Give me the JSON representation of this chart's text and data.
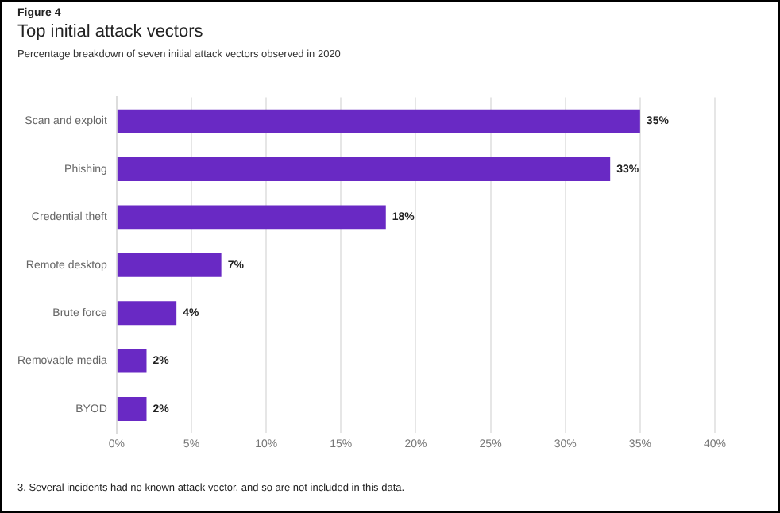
{
  "chart_data": {
    "type": "bar",
    "orientation": "horizontal",
    "title": "Top initial attack vectors",
    "subtitle": "Percentage breakdown of seven initial attack vectors observed in 2020",
    "annotations": [
      "Figure 4",
      "3. Several incidents had no known attack vector, and so are not included in this data."
    ],
    "categories": [
      "Scan and exploit",
      "Phishing",
      "Credential theft",
      "Remote desktop",
      "Brute force",
      "Removable media",
      "BYOD"
    ],
    "values": [
      35,
      33,
      18,
      7,
      4,
      2,
      2
    ],
    "value_labels": [
      "35%",
      "33%",
      "18%",
      "7%",
      "4%",
      "2%",
      "2%"
    ],
    "color": "#6929c4",
    "xlim": [
      0,
      40
    ],
    "xticks": [
      {
        "value": 0,
        "label": "0%"
      },
      {
        "value": 5,
        "label": "5%"
      },
      {
        "value": 10,
        "label": "10%"
      },
      {
        "value": 15,
        "label": "15%"
      },
      {
        "value": 20,
        "label": "20%"
      },
      {
        "value": 25,
        "label": "25%"
      },
      {
        "value": 30,
        "label": "30%"
      },
      {
        "value": 35,
        "label": "35%"
      },
      {
        "value": 40,
        "label": "40%"
      }
    ],
    "grid": "x",
    "legend": false
  }
}
